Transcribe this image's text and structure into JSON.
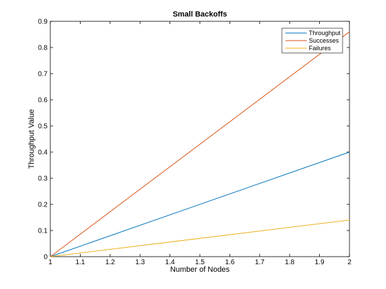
{
  "chart_data": {
    "type": "line",
    "title": "Small Backoffs",
    "xlabel": "Number of Nodes",
    "ylabel": "Throughput Value",
    "xlim": [
      1,
      2
    ],
    "ylim": [
      0,
      0.9
    ],
    "xticks": [
      "1",
      "1.1",
      "1.2",
      "1.3",
      "1.4",
      "1.5",
      "1.6",
      "1.7",
      "1.8",
      "1.9",
      "2"
    ],
    "yticks": [
      "0",
      "0.1",
      "0.2",
      "0.3",
      "0.4",
      "0.5",
      "0.6",
      "0.7",
      "0.8",
      "0.9"
    ],
    "grid": false,
    "legend_position": "top-right",
    "series": [
      {
        "name": "Throughput",
        "color": "#0072bd",
        "x": [
          1,
          2
        ],
        "y": [
          0,
          0.4
        ]
      },
      {
        "name": "Successes",
        "color": "#d95319",
        "x": [
          1,
          2
        ],
        "y": [
          0,
          0.86
        ]
      },
      {
        "name": "Failures",
        "color": "#edb120",
        "x": [
          1,
          2
        ],
        "y": [
          0,
          0.14
        ]
      }
    ]
  }
}
